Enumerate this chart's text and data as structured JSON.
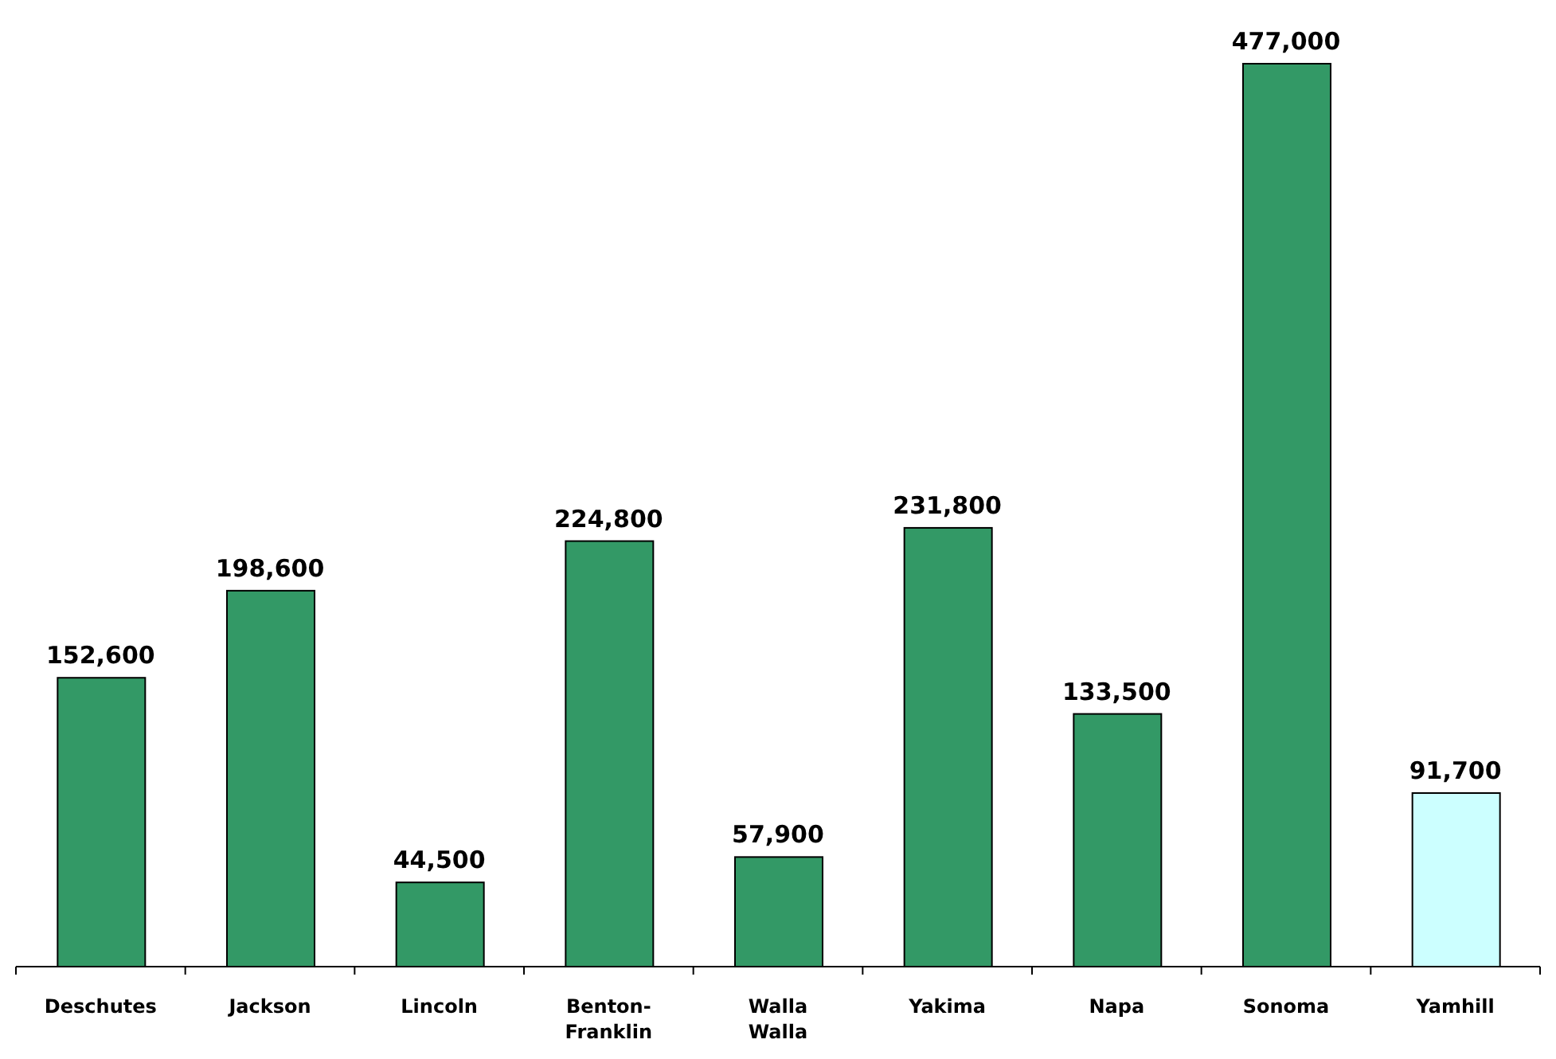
{
  "chart_data": {
    "type": "bar",
    "categories": [
      "Deschutes",
      "Jackson",
      "Lincoln",
      "Benton-Franklin",
      "Walla Walla",
      "Yakima",
      "Napa",
      "Sonoma",
      "Yamhill"
    ],
    "values": [
      152600,
      198600,
      44500,
      224800,
      57900,
      231800,
      133500,
      477000,
      91700
    ],
    "colors": [
      "#339966",
      "#339966",
      "#339966",
      "#339966",
      "#339966",
      "#339966",
      "#339966",
      "#339966",
      "#ccffff"
    ],
    "value_labels": [
      "152,600",
      "198,600",
      "44,500",
      "224,800",
      "57,900",
      "231,800",
      "133,500",
      "477,000",
      "91,700"
    ]
  }
}
